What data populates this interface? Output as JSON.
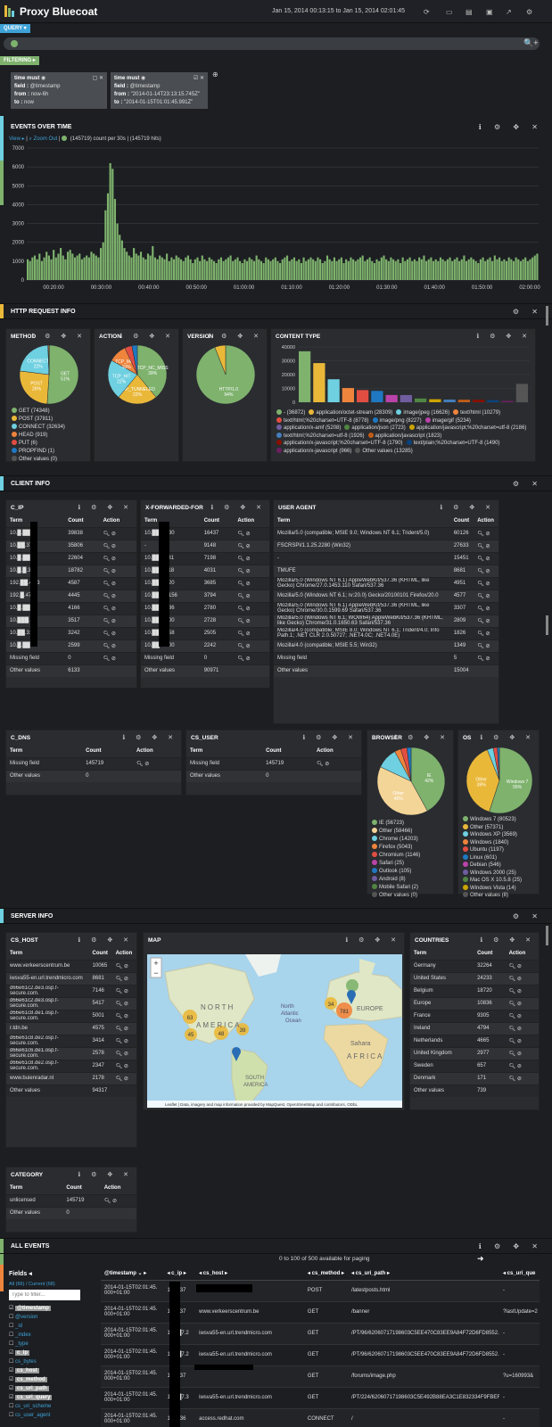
{
  "header": {
    "title": "Proxy Bluecoat",
    "time_range": "Jan 15, 2014 00:13:15 to Jan 15, 2014 02:01:45"
  },
  "query": {
    "label": "QUERY ▾"
  },
  "filtering": {
    "label": "FILTERING ▸"
  },
  "filters": [
    {
      "title": "time must",
      "field_label": "field :",
      "field": "@timestamp",
      "from_label": "from :",
      "from": "now-6h",
      "to_label": "to :",
      "to": "now"
    },
    {
      "title": "time must",
      "field_label": "field :",
      "field": "@timestamp",
      "from_label": "from :",
      "from": "\"2014-01-14T23:13:15.745Z\"",
      "to_label": "to :",
      "to": "\"2014-01-15T01:01:45.991Z\""
    }
  ],
  "sections": {
    "events_over_time": "EVENTS OVER TIME",
    "http_request_info": "HTTP REQUEST INFO",
    "client_info": "CLIENT INFO",
    "server_info": "SERVER INFO",
    "all_events": "ALL EVENTS"
  },
  "histogram": {
    "view": "View ▸",
    "zoom_out": "Zoom Out",
    "legend": "(145719)",
    "summary": "count per 30s | (145719 hits)",
    "accent": "#7eb26d"
  },
  "chart_data": {
    "type": "bar",
    "title": "EVENTS OVER TIME",
    "ylim": [
      0,
      7000
    ],
    "y_ticks": [
      "7000",
      "6000",
      "5000",
      "4000",
      "3000",
      "2000",
      "1000",
      "0"
    ],
    "x_ticks": [
      "00:20:00",
      "00:30:00",
      "00:40:00",
      "00:50:00",
      "01:00:00",
      "01:10:00",
      "01:20:00",
      "01:30:00",
      "01:40:00",
      "01:50:00",
      "02:00:00"
    ],
    "series": [
      {
        "name": "(145719)",
        "color": "#7eb26d",
        "values": [
          1100,
          1000,
          1200,
          1300,
          1100,
          1400,
          1000,
          1200,
          1500,
          1300,
          1100,
          1600,
          1200,
          1400,
          1700,
          1300,
          1100,
          1500,
          1600,
          1400,
          1200,
          1300,
          1400,
          1100,
          1200,
          1300,
          1200,
          1500,
          1400,
          1300,
          1200,
          1700,
          2000,
          3700,
          4600,
          6200,
          5900,
          4300,
          3000,
          2400,
          2100,
          1700,
          1500,
          1300,
          1200,
          1700,
          1400,
          1300,
          1500,
          1200,
          1100,
          1400,
          1300,
          1800,
          1200,
          1100,
          1300,
          1200,
          1100,
          1400,
          1000,
          1200,
          1100,
          1300,
          1200,
          1100,
          1000,
          1200,
          1300,
          1100,
          900,
          1100,
          1200,
          1000,
          1300,
          1100,
          1000,
          1200,
          1100,
          1000,
          900,
          1100,
          1200,
          1000,
          1100,
          1200,
          1300,
          1000,
          1100,
          1200,
          1000,
          900,
          1100,
          1000,
          1200,
          1100,
          1000,
          1300,
          1100,
          1000,
          900,
          1200,
          1100,
          1000,
          1100,
          1200,
          1000,
          900,
          1100,
          1200,
          1300,
          1000,
          1100,
          1200,
          1000,
          1100,
          900,
          1200,
          1000,
          1100,
          1200,
          1100,
          1000,
          1200,
          1100,
          900,
          1000,
          1300,
          1100,
          1000,
          1200,
          1000,
          1100,
          1200,
          900,
          1100,
          1000,
          1200,
          1100,
          1000,
          1100,
          1200,
          1300,
          1000,
          1100,
          1200,
          1000,
          900,
          1100,
          1000,
          1200,
          1300,
          1100,
          1000,
          1200,
          1100,
          1000,
          1100,
          900,
          1200,
          1000,
          1100,
          1200,
          1000,
          1100,
          1000,
          1200,
          1100,
          1300,
          1000,
          1100,
          1200,
          1000,
          1100,
          1000,
          1200,
          1100,
          1000,
          1100,
          1200,
          1000,
          1100,
          1200,
          1000,
          1100,
          1300,
          1000,
          1100,
          1200,
          1100,
          1000,
          900,
          1100,
          1200,
          1000,
          1100,
          1200,
          1000,
          1300,
          1100,
          1200,
          1000,
          1100,
          1000,
          1200,
          1100,
          1000,
          1200,
          1100,
          1000,
          1100,
          1200,
          1000,
          1100,
          1200,
          1300,
          1400
        ]
      }
    ]
  },
  "method": {
    "title": "METHOD",
    "pie": [
      {
        "label": "GET",
        "pct": "51%",
        "value": 74348,
        "color": "#7eb26d"
      },
      {
        "label": "POST",
        "pct": "26%",
        "value": 37811,
        "color": "#eab839"
      },
      {
        "label": "CONNECT",
        "pct": "22%",
        "value": 32634,
        "color": "#6ed0e0"
      },
      {
        "label": "HEAD",
        "value": 919,
        "color": "#ef843c"
      },
      {
        "label": "PUT",
        "value": 6,
        "color": "#e24d42"
      },
      {
        "label": "PROPFIND",
        "value": 1,
        "color": "#1f78c1"
      }
    ],
    "legend": [
      "GET (74348)",
      "POST (37811)",
      "CONNECT (32634)",
      "HEAD (919)",
      "PUT (6)",
      "PROPFIND (1)",
      "Other values (0)"
    ],
    "legend_colors": [
      "#7eb26d",
      "#eab839",
      "#6ed0e0",
      "#ef843c",
      "#e24d42",
      "#1f78c1",
      "#555"
    ]
  },
  "action": {
    "title": "ACTION",
    "pie": [
      {
        "label": "TCP_NC_MISS",
        "pct": "39%",
        "color": "#7eb26d"
      },
      {
        "label": "TCP_TUNNELED",
        "pct": "22%",
        "color": "#eab839"
      },
      {
        "label": "TCP_HIT",
        "pct": "22%",
        "color": "#6ed0e0"
      },
      {
        "label": "TCP_MISS",
        "pct": "10%",
        "color": "#ef843c"
      },
      {
        "label": "",
        "color": "#e24d42",
        "value": 4
      },
      {
        "label": "",
        "color": "#1f78c1",
        "value": 3
      }
    ]
  },
  "version": {
    "title": "VERSION",
    "pie": [
      {
        "label": "HTTP/1.0",
        "pct": "94%",
        "color": "#7eb26d",
        "value": 94
      },
      {
        "label": "",
        "color": "#eab839",
        "value": 6
      }
    ]
  },
  "content_type": {
    "title": "CONTENT TYPE",
    "ylim": [
      0,
      40000
    ],
    "y_ticks": [
      "40000",
      "30000",
      "20000",
      "10000",
      "0"
    ],
    "bars": [
      {
        "v": 36872,
        "c": "#7eb26d"
      },
      {
        "v": 28309,
        "c": "#eab839"
      },
      {
        "v": 16626,
        "c": "#6ed0e0"
      },
      {
        "v": 10279,
        "c": "#ef843c"
      },
      {
        "v": 8778,
        "c": "#e24d42"
      },
      {
        "v": 8227,
        "c": "#1f78c1"
      },
      {
        "v": 5234,
        "c": "#ba43a9"
      },
      {
        "v": 5208,
        "c": "#705da0"
      },
      {
        "v": 2723,
        "c": "#508642"
      },
      {
        "v": 2186,
        "c": "#cca300"
      },
      {
        "v": 1926,
        "c": "#447ebc"
      },
      {
        "v": 1823,
        "c": "#c15c17"
      },
      {
        "v": 1790,
        "c": "#890f02"
      },
      {
        "v": 1490,
        "c": "#0a437c"
      },
      {
        "v": 966,
        "c": "#6d1f62"
      },
      {
        "v": 13285,
        "c": "#555"
      }
    ],
    "legend": [
      "- (36872)",
      "application/octet-stream (28309)",
      "image/jpeg (16626)",
      "text/html (10279)",
      "text/html;%20charset=UTF-8 (8778)",
      "image/png (8227)",
      "image/gif (5234)",
      "application/x-amf (5208)",
      "application/json (2723)",
      "application/javascript;%20charset=utf-8 (2186)",
      "text/html;%20charset=utf-8 (1926)",
      "application/javascript (1823)",
      "application/x-javascript;%20charset=UTF-8 (1790)",
      "text/plain;%20charset=UTF-8 (1490)",
      "application/x-javascript (966)",
      "Other values (13285)"
    ]
  },
  "tables": {
    "c_ip": {
      "title": "C_IP",
      "headers": [
        "Term",
        "Count",
        "Action"
      ],
      "rows": [
        [
          "10.█.██.36",
          "39838"
        ],
        [
          "10.██.37",
          "35806"
        ],
        [
          "10.█.██.37",
          "22604"
        ],
        [
          "10.█.█.37",
          "18782"
        ],
        [
          "192.██.47.3",
          "4587"
        ],
        [
          "192.█.47.3",
          "4445"
        ],
        [
          "10.█.██.36",
          "4166"
        ],
        [
          "10.███.31",
          "3517"
        ],
        [
          "10.██.31",
          "3242"
        ],
        [
          "10.█.██.31",
          "2599"
        ],
        [
          "Missing field",
          "0"
        ],
        [
          "Other values",
          "6133"
        ]
      ]
    },
    "xff": {
      "title": "X-FORWARDED-FOR",
      "headers": [
        "Term",
        "Count",
        "Action"
      ],
      "rows": [
        [
          "10.██.8.130",
          "16437"
        ],
        [
          "-",
          "9148"
        ],
        [
          "10.██.11.31",
          "7198"
        ],
        [
          "10.██.7.118",
          "4031"
        ],
        [
          "10.██.9.120",
          "3685"
        ],
        [
          "10.██.22.156",
          "3794"
        ],
        [
          "10.██.4.136",
          "2780"
        ],
        [
          "10.██.6.100",
          "2728"
        ],
        [
          "10.██.01.58",
          "2505"
        ],
        [
          "10.██.1.100",
          "2242"
        ],
        [
          "Missing field",
          "0"
        ],
        [
          "Other values",
          "90971"
        ]
      ]
    },
    "user_agent": {
      "title": "USER AGENT",
      "headers": [
        "Term",
        "Count",
        "Action"
      ],
      "rows": [
        [
          "Mozilla/5.0 (compatible; MSIE 9.0; Windows NT 6.1; Trident/5.0)",
          "60126"
        ],
        [
          "FSCRSPI/1.1.25.2280 (Win32)",
          "27633"
        ],
        [
          "-",
          "15451"
        ],
        [
          "TMUFE",
          "8681"
        ],
        [
          "Mozilla/5.0 (Windows NT 6.1) AppleWebKit/537.36 (KHTML, like Gecko) Chrome/27.0.1453.110 Safari/537.36",
          "4951"
        ],
        [
          "Mozilla/5.0 (Windows NT 6.1; rv:20.0) Gecko/20100101 Firefox/20.0",
          "4577"
        ],
        [
          "Mozilla/5.0 (Windows NT 6.1) AppleWebKit/537.36 (KHTML, like Gecko) Chrome/30.0.1599.69 Safari/537.36",
          "3307"
        ],
        [
          "Mozilla/5.0 (Windows NT 6.1; WOW64) AppleWebKit/537.36 (KHTML, like Gecko) Chrome/31.0.1650.63 Safari/537.36",
          "2809"
        ],
        [
          "Mozilla/4.0 (compatible; MSIE 8.0; Windows NT 6.1; Trident/4.0; Info Path.1; .NET CLR 2.0.50727; .NET4.0C; .NET4.0E)",
          "1826"
        ],
        [
          "Mozilla/4.0 (compatible; MSIE 5.5; Win32)",
          "1349"
        ],
        [
          "Missing field",
          "5"
        ],
        [
          "Other values",
          "15004"
        ]
      ]
    },
    "c_dns": {
      "title": "C_DNS",
      "headers": [
        "Term",
        "Count",
        "Action"
      ],
      "rows": [
        [
          "Missing field",
          "145719"
        ],
        [
          "Other values",
          "0"
        ]
      ]
    },
    "cs_user": {
      "title": "CS_USER",
      "headers": [
        "Term",
        "Count",
        "Action"
      ],
      "rows": [
        [
          "Missing field",
          "145719"
        ],
        [
          "Other values",
          "0"
        ]
      ]
    },
    "cs_host": {
      "title": "CS_HOST",
      "headers": [
        "Term",
        "Count",
        "Action"
      ],
      "rows": [
        [
          "www.verkeerscentrum.be",
          "10065"
        ],
        [
          "iwsva55-en.url.trendmicro.com",
          "8681"
        ],
        [
          "d66e61c2.de3.osp.f-secure.com.",
          "7146"
        ],
        [
          "d66e61c2.de3.osp.f-secure.com.",
          "5417"
        ],
        [
          "d66e61c8.de1.osp.f-secure.com.",
          "5001"
        ],
        [
          "r.tdn.be",
          "4575"
        ],
        [
          "d66e61c8.de2.osp.f-secure.com.",
          "3414"
        ],
        [
          "d66e61c6.de1.osp.f-secure.com.",
          "2578"
        ],
        [
          "d66e61c8.de2.osp.f-secure.com.",
          "2347"
        ],
        [
          "www.buienradar.nl",
          "2178"
        ],
        [
          "Other values",
          "94317"
        ]
      ]
    },
    "countries": {
      "title": "COUNTRIES",
      "headers": [
        "Term",
        "Count",
        "Action"
      ],
      "rows": [
        [
          "Germany",
          "32264"
        ],
        [
          "United States",
          "24233"
        ],
        [
          "Belgium",
          "18720"
        ],
        [
          "Europe",
          "10836"
        ],
        [
          "France",
          "9305"
        ],
        [
          "Ireland",
          "4794"
        ],
        [
          "Netherlands",
          "4665"
        ],
        [
          "United Kingdom",
          "2977"
        ],
        [
          "Sweden",
          "657"
        ],
        [
          "Denmark",
          "171"
        ],
        [
          "Other values",
          "739"
        ]
      ]
    },
    "category": {
      "title": "CATEGORY",
      "headers": [
        "Term",
        "Count",
        "Action"
      ],
      "rows": [
        [
          "unlicensed",
          "145719"
        ],
        [
          "Other values",
          "0"
        ]
      ]
    }
  },
  "browser": {
    "title": "BROWSER",
    "pie": [
      {
        "label": "IE",
        "pct": "42%",
        "value": 42,
        "color": "#7eb26d"
      },
      {
        "label": "Other",
        "pct": "40%",
        "value": 40,
        "color": "#f4d598"
      },
      {
        "label": "",
        "value": 10,
        "color": "#6ed0e0"
      },
      {
        "label": "",
        "value": 3,
        "color": "#ef843c"
      },
      {
        "label": "",
        "value": 3,
        "color": "#e24d42"
      },
      {
        "label": "",
        "value": 2,
        "color": "#1f78c1"
      }
    ],
    "legend": [
      "IE (56723)",
      "Other (58466)",
      "Chrome (14203)",
      "Firefox (5043)",
      "Chromium (1146)",
      "Safari (25)",
      "Outlook (105)",
      "Android (8)",
      "Mobile Safari (2)",
      "Other values (0)"
    ],
    "legend_colors": [
      "#7eb26d",
      "#f4d598",
      "#6ed0e0",
      "#ef843c",
      "#e24d42",
      "#ba43a9",
      "#1f78c1",
      "#705da0",
      "#508642",
      "#555"
    ]
  },
  "os": {
    "title": "OS",
    "pie": [
      {
        "label": "Windows 7",
        "pct": "55%",
        "value": 55,
        "color": "#7eb26d"
      },
      {
        "label": "Other",
        "pct": "39%",
        "value": 39,
        "color": "#eab839"
      },
      {
        "label": "",
        "value": 3,
        "color": "#6ed0e0"
      },
      {
        "label": "",
        "value": 2,
        "color": "#e24d42"
      },
      {
        "label": "",
        "value": 1,
        "color": "#1f78c1"
      }
    ],
    "legend": [
      "Windows 7 (80523)",
      "Other (57371)",
      "Windows XP (3569)",
      "Windows (1840)",
      "Ubuntu (1197)",
      "Linux (601)",
      "Debian (546)",
      "Windows 2000 (25)",
      "Mac OS X 10.5.8 (25)",
      "Windows Vista (14)",
      "Other values (8)"
    ],
    "legend_colors": [
      "#7eb26d",
      "#eab839",
      "#6ed0e0",
      "#ef843c",
      "#e24d42",
      "#1f78c1",
      "#ba43a9",
      "#705da0",
      "#508642",
      "#cca300",
      "#555"
    ]
  },
  "map": {
    "title": "MAP",
    "attribution": "Leaflet | Data, imagery and map information provided by MapQuest, OpenStreetMap and contributors, ODbL",
    "labels": [
      "NORTH",
      "AMERICA",
      "North",
      "Atlantic",
      "Ocean",
      "EUROPE",
      "Sahara",
      "AFRICA",
      "SOUTH",
      "AMERICA"
    ],
    "clusters": [
      {
        "n": "63"
      },
      {
        "n": "48"
      },
      {
        "n": "45"
      },
      {
        "n": "39"
      },
      {
        "n": "34"
      },
      {
        "n": "781"
      }
    ]
  },
  "all_events": {
    "paging": "0 to 100 of 500 available for paging",
    "fields_title": "Fields",
    "fields_tabs": "All (66) / Current (68)",
    "filter_placeholder": "Type to filter...",
    "fields": [
      {
        "name": "@timestamp",
        "checked": true
      },
      {
        "name": "@version",
        "checked": false
      },
      {
        "name": "_id",
        "checked": false
      },
      {
        "name": "_index",
        "checked": false
      },
      {
        "name": "_type",
        "checked": false
      },
      {
        "name": "c_ip",
        "checked": true
      },
      {
        "name": "cs_bytes",
        "checked": false
      },
      {
        "name": "cs_host",
        "checked": true
      },
      {
        "name": "cs_method",
        "checked": true
      },
      {
        "name": "cs_uri_path",
        "checked": true
      },
      {
        "name": "cs_uri_query",
        "checked": true
      },
      {
        "name": "cs_uri_scheme",
        "checked": false
      },
      {
        "name": "cs_user_agent",
        "checked": false
      }
    ],
    "columns": [
      "@timestamp ⌄ ▸",
      "◂ c_ip ▸",
      "◂ cs_host ▸",
      "◂ cs_method ▸",
      "◂ cs_uri_path ▸",
      "◂ cs_uri_que"
    ],
    "rows": [
      [
        "2014-01-15T02:01:45.000+01:00",
        "10.█.37",
        "",
        "POST",
        "/latestposts.html",
        "-"
      ],
      [
        "2014-01-15T02:01:45.000+01:00",
        "10.█.37",
        "www.verkeerscentrum.be",
        "GET",
        "/banner",
        "?lastUpdate=2"
      ],
      [
        "2014-01-15T02:01:45.000+01:00",
        "192.█7.2",
        "iwsva55-en.url.trendmicro.com",
        "GET",
        "/PT/96/62060717198603C5EE470C83EE9A84F72D6FD8552...",
        "-"
      ],
      [
        "2014-01-15T02:01:45.000+01:00",
        "192.█7.2",
        "iwsva55-en.url.trendmicro.com",
        "GET",
        "/PT/96/62060717198603C5EE470C83EE9A84F72D6FD8552...",
        "-"
      ],
      [
        "2014-01-15T02:01:45.000+01:00",
        "10.█.37",
        "",
        "GET",
        "/forums/image.php",
        "?u=160993&"
      ],
      [
        "2014-01-15T02:01:45.000+01:00",
        "192.█7.3",
        "iwsva55-en.url.trendmicro.com",
        "GET",
        "/PT/224/62060717198603C5E492B88EA3C1E832334F9FBEF7E...",
        "-"
      ],
      [
        "2014-01-15T02:01:45.000+01:00",
        "10.█.36",
        "access.redhat.com",
        "CONNECT",
        "/",
        "-"
      ]
    ]
  }
}
